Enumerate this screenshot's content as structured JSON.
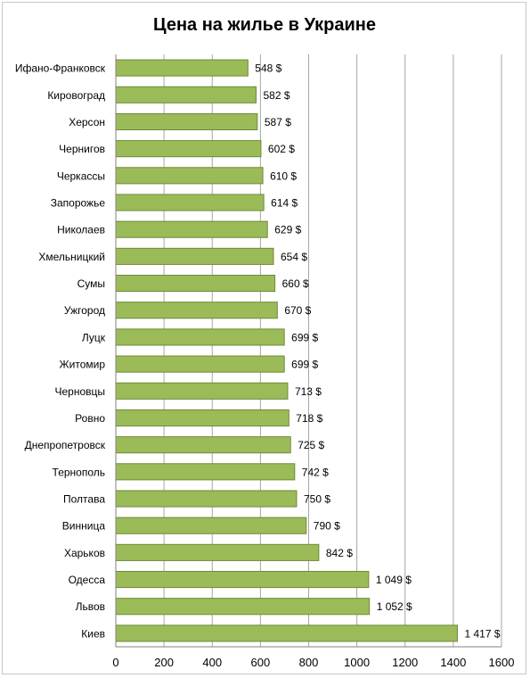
{
  "chart_data": {
    "type": "bar",
    "orientation": "horizontal",
    "title": "Цена на жилье в Украине",
    "xlabel": "",
    "ylabel": "",
    "xlim": [
      0,
      1600
    ],
    "x_ticks": [
      0,
      200,
      400,
      600,
      800,
      1000,
      1200,
      1400,
      1600
    ],
    "x_tick_labels": [
      "0",
      "200",
      "400",
      "600",
      "800",
      "1000",
      "1200",
      "1400",
      "1600"
    ],
    "grid": "vertical",
    "legend": "none",
    "bar_color": "#9bbb59",
    "bar_edge_color": "#6f8a36",
    "categories": [
      "Ифано-Франковск",
      "Кировоград",
      "Херсон",
      "Чернигов",
      "Черкассы",
      "Запорожье",
      "Николаев",
      "Хмельницкий",
      "Сумы",
      "Ужгород",
      "Луцк",
      "Житомир",
      "Черновцы",
      "Ровно",
      "Днепропетровск",
      "Тернополь",
      "Полтава",
      "Винница",
      "Харьков",
      "Одесса",
      "Львов",
      "Киев"
    ],
    "values": [
      548,
      582,
      587,
      602,
      610,
      614,
      629,
      654,
      660,
      670,
      699,
      699,
      713,
      718,
      725,
      742,
      750,
      790,
      842,
      1049,
      1052,
      1417
    ],
    "data_labels": [
      "548 $",
      "582 $",
      "587 $",
      "602 $",
      "610 $",
      "614 $",
      "629 $",
      "654 $",
      "660 $",
      "670 $",
      "699 $",
      "699 $",
      "713 $",
      "718 $",
      "725 $",
      "742 $",
      "750 $",
      "790 $",
      "842 $",
      "1 049 $",
      "1 052 $",
      "1 417 $"
    ]
  }
}
